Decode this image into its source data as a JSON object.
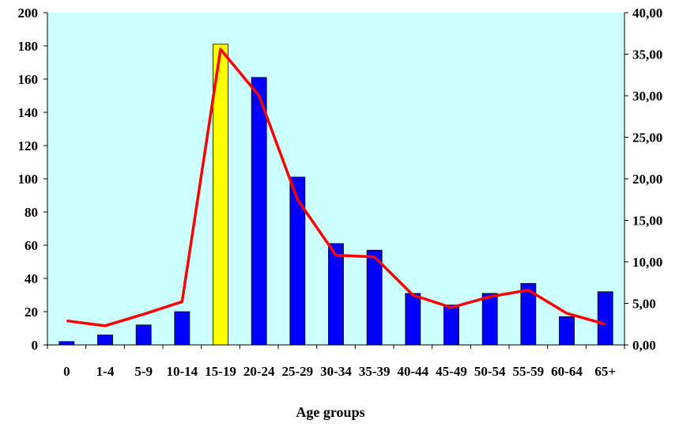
{
  "chart_data": {
    "type": "bar",
    "categories": [
      "0",
      "1-4",
      "5-9",
      "10-14",
      "15-19",
      "20-24",
      "25-29",
      "30-34",
      "35-39",
      "40-44",
      "45-49",
      "50-54",
      "55-59",
      "60-64",
      "65+"
    ],
    "series": [
      {
        "axis": "left",
        "mark": "bar",
        "values": [
          2,
          6,
          12,
          20,
          181,
          161,
          101,
          61,
          57,
          31,
          24,
          31,
          37,
          17,
          32
        ],
        "color": "#0000ff",
        "highlight_index": 4,
        "highlight_color": "#ffff00"
      },
      {
        "axis": "right",
        "mark": "line",
        "values": [
          2.9,
          2.3,
          3.7,
          5.2,
          35.6,
          30.0,
          17.5,
          10.8,
          10.6,
          6.0,
          4.5,
          5.8,
          6.6,
          3.8,
          2.5
        ],
        "color": "#ff0000"
      }
    ],
    "xlabel": "Age groups",
    "ylim": [
      0,
      200
    ],
    "yticks": [
      "0",
      "20",
      "40",
      "60",
      "80",
      "100",
      "120",
      "140",
      "160",
      "180",
      "200"
    ],
    "y2lim": [
      0,
      40
    ],
    "y2ticks": [
      "0,00",
      "5,00",
      "10,00",
      "15,00",
      "20,00",
      "25,00",
      "30,00",
      "35,00",
      "40,00"
    ],
    "plot_background": "#ccffff",
    "grid": false,
    "legend": "none"
  }
}
